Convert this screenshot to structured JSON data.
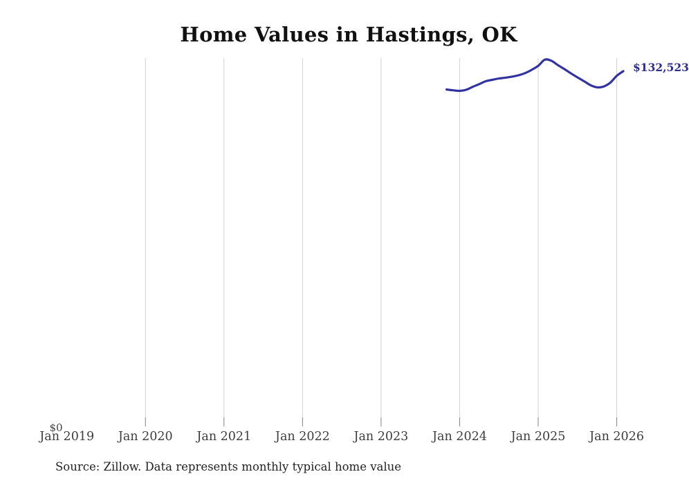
{
  "title": "Home Values in Hastings, OK",
  "source_note": "Source: Zillow. Data represents monthly typical home value",
  "y_axis": {
    "zero_label": "$0"
  },
  "end_label": "$132,523",
  "colors": {
    "line": "#3232a0",
    "end_label": "#2d2d8f",
    "gridline": "#d2d2d2",
    "tick": "#808080",
    "axis_text": "#3d3d3d"
  },
  "chart_data": {
    "type": "line",
    "title": "Home Values in Hastings, OK",
    "xlabel": "",
    "ylabel": "",
    "ylim": [
      0,
      137400
    ],
    "grid": "vertical-only",
    "legend": "none",
    "x_tick_labels": [
      "Jan 2019",
      "Jan 2020",
      "Jan 2021",
      "Jan 2022",
      "Jan 2023",
      "Jan 2024",
      "Jan 2025",
      "Jan 2026"
    ],
    "series": [
      {
        "name": "Monthly typical home value",
        "frequency": "monthly",
        "start_month": "2023-11",
        "end_month": "2026-02",
        "end_value_label": "$132,523",
        "values": [
          125700,
          125400,
          125200,
          125600,
          126700,
          127700,
          128800,
          129300,
          129800,
          130100,
          130500,
          131000,
          131800,
          133000,
          134500,
          136800,
          136400,
          134800,
          133300,
          131700,
          130200,
          128800,
          127300,
          126500,
          126800,
          128200,
          130800,
          132523
        ]
      }
    ]
  }
}
